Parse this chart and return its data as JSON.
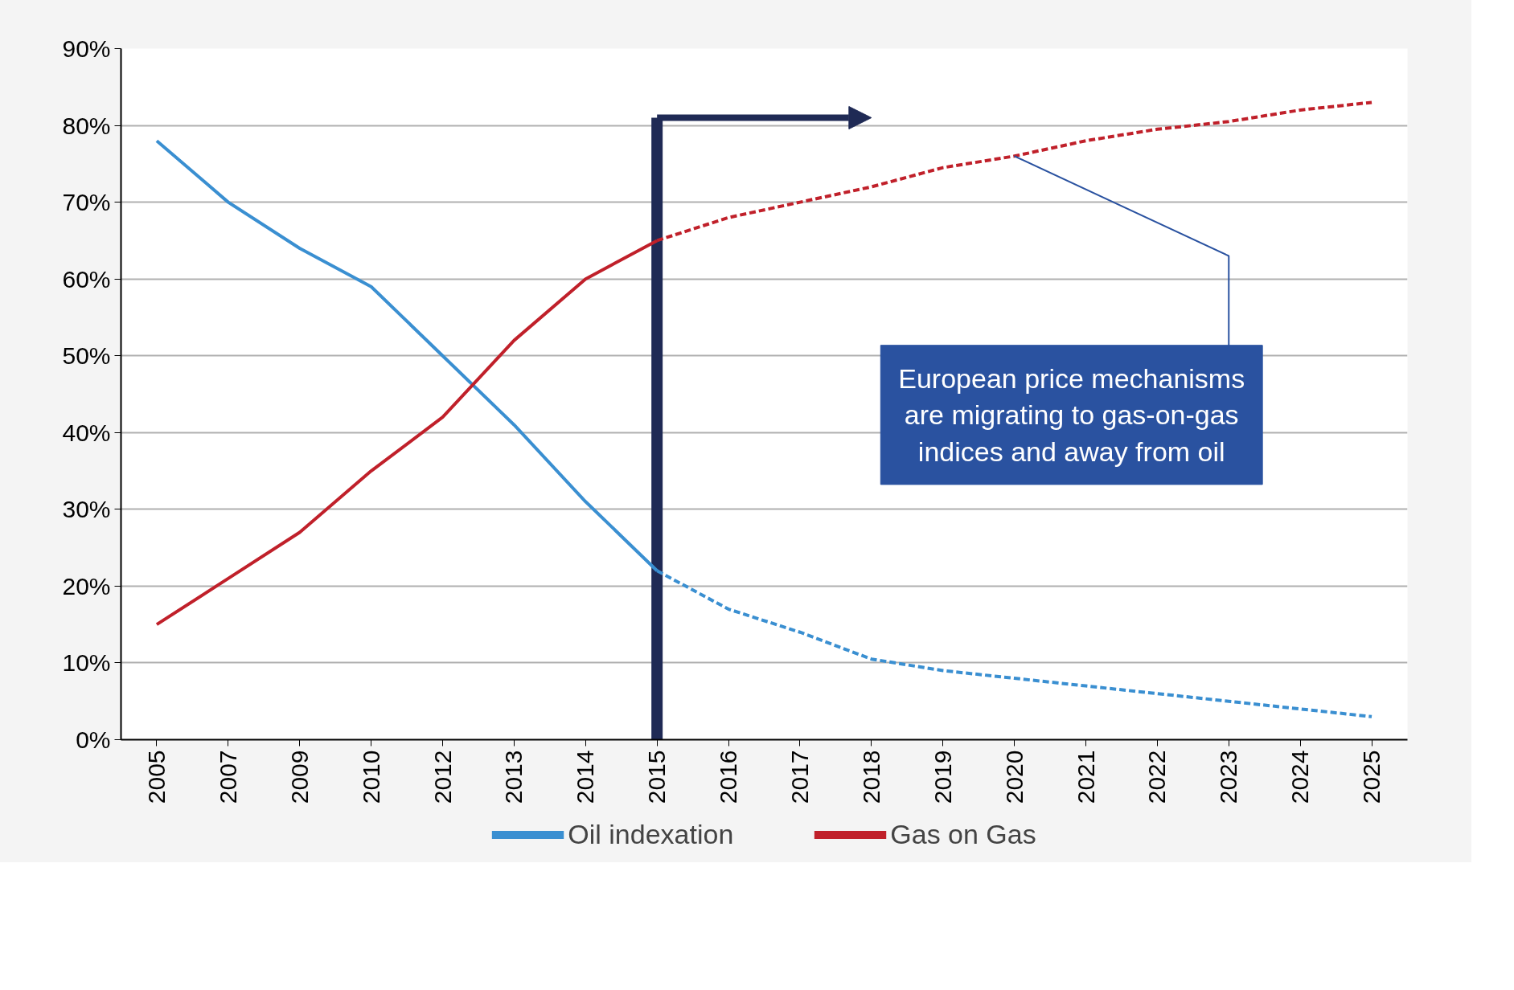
{
  "chart_data": {
    "type": "line",
    "categories": [
      "2005",
      "2007",
      "2009",
      "2010",
      "2012",
      "2013",
      "2014",
      "2015",
      "2016",
      "2017",
      "2018",
      "2019",
      "2020",
      "2021",
      "2022",
      "2023",
      "2024",
      "2025"
    ],
    "series": [
      {
        "name": "Oil indexation",
        "color": "#3a8fd1",
        "line_style": "solid",
        "values": [
          78,
          70,
          64,
          59,
          50,
          41,
          31,
          22,
          null,
          null,
          null,
          null,
          null,
          null,
          null,
          null,
          null,
          null
        ]
      },
      {
        "color": "#3a8fd1",
        "line_style": "dashed",
        "values": [
          null,
          null,
          null,
          null,
          null,
          null,
          null,
          22,
          17,
          14,
          10.5,
          9,
          8,
          7,
          6,
          5,
          4,
          3
        ]
      },
      {
        "name": "Gas on Gas",
        "color": "#c0202a",
        "line_style": "solid",
        "values": [
          15,
          21,
          27,
          35,
          42,
          52,
          60,
          65,
          null,
          null,
          null,
          null,
          null,
          null,
          null,
          null,
          null,
          null
        ]
      },
      {
        "color": "#c0202a",
        "line_style": "dashed",
        "values": [
          null,
          null,
          null,
          null,
          null,
          null,
          null,
          65,
          68,
          70,
          72,
          74.5,
          76,
          78,
          79.5,
          80.5,
          82,
          83
        ]
      }
    ],
    "ylim": [
      0,
      90
    ],
    "yticks": [
      {
        "value": 0,
        "label": "0%"
      },
      {
        "value": 10,
        "label": "10%"
      },
      {
        "value": 20,
        "label": "20%"
      },
      {
        "value": 30,
        "label": "30%"
      },
      {
        "value": 40,
        "label": "40%"
      },
      {
        "value": 50,
        "label": "50%"
      },
      {
        "value": 60,
        "label": "60%"
      },
      {
        "value": 70,
        "label": "70%"
      },
      {
        "value": 80,
        "label": "80%"
      },
      {
        "value": 90,
        "label": "90%"
      }
    ],
    "grid": "y",
    "legend": "bottom",
    "marker": "none",
    "ref_lines": [
      {
        "axis": "x",
        "value": "2015",
        "color": "#1f2a55"
      }
    ],
    "annotations": [
      {
        "text": "European price mechanisms are migrating to gas-on-gas indices and away from oil",
        "x": "2020",
        "y": 76
      }
    ]
  }
}
